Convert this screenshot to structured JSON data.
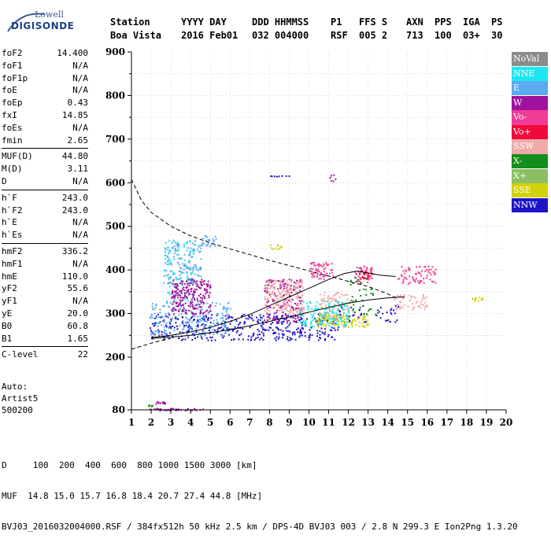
{
  "logo": {
    "top_text": "Lowell",
    "main_text": "DIGISONDE"
  },
  "header": {
    "labels": [
      "Station",
      "YYYY DAY",
      "DDD HHMMSS",
      "P1",
      "FFS S",
      "AXN",
      "PPS",
      "IGA",
      "PS"
    ],
    "values": [
      "Boa Vista",
      "2016 Feb01",
      "032 004000",
      "RSF",
      "005 2",
      "713",
      "100",
      "03+",
      "30"
    ]
  },
  "params": {
    "group1": [
      {
        "label": "foF2",
        "value": "14.400"
      },
      {
        "label": "foF1",
        "value": "N/A"
      },
      {
        "label": "foF1p",
        "value": "N/A"
      },
      {
        "label": "foE",
        "value": "N/A"
      },
      {
        "label": "foEp",
        "value": "0.43"
      },
      {
        "label": "fxI",
        "value": "14.85"
      },
      {
        "label": "foEs",
        "value": "N/A"
      },
      {
        "label": "fmin",
        "value": "2.65"
      }
    ],
    "group2": [
      {
        "label": "MUF(D)",
        "value": "44.80"
      },
      {
        "label": "M(D)",
        "value": "3.11"
      },
      {
        "label": "D",
        "value": "N/A"
      }
    ],
    "group3": [
      {
        "label": "h`F",
        "value": "243.0"
      },
      {
        "label": "h`F2",
        "value": "243.0"
      },
      {
        "label": "h`E",
        "value": "N/A"
      },
      {
        "label": "h`Es",
        "value": "N/A"
      }
    ],
    "group4": [
      {
        "label": "hmF2",
        "value": "336.2"
      },
      {
        "label": "hmF1",
        "value": "N/A"
      },
      {
        "label": "hmE",
        "value": "110.0"
      },
      {
        "label": "yF2",
        "value": "55.6"
      },
      {
        "label": "yF1",
        "value": "N/A"
      },
      {
        "label": "yE",
        "value": "20.0"
      },
      {
        "label": "B0",
        "value": "60.8"
      },
      {
        "label": "B1",
        "value": "1.65"
      }
    ],
    "group5": [
      {
        "label": "C-level",
        "value": "22"
      }
    ]
  },
  "auto": {
    "line1": "Auto:",
    "line2": "Artist5",
    "line3": "500200"
  },
  "legend": [
    {
      "label": "NoVal",
      "color": "#8c8c8c"
    },
    {
      "label": "NNE",
      "color": "#1ee6f0"
    },
    {
      "label": "E",
      "color": "#5aaaf0"
    },
    {
      "label": "W",
      "color": "#a0129c"
    },
    {
      "label": "Vo-",
      "color": "#f03c96"
    },
    {
      "label": "Vo+",
      "color": "#f00a3c"
    },
    {
      "label": "SSW",
      "color": "#f0aaaa"
    },
    {
      "label": "X-",
      "color": "#148c1e"
    },
    {
      "label": "X+",
      "color": "#8cbe64"
    },
    {
      "label": "SSE",
      "color": "#d2d20a"
    },
    {
      "label": "NNW",
      "color": "#1e14c8"
    }
  ],
  "footer": {
    "line1": "D     100  200  400  600  800 1000 1500 3000 [km]",
    "line2": "MUF  14.8 15.0 15.7 16.8 18.4 20.7 27.4 44.8 [MHz]",
    "line3": "BVJ03_2016032004000.RSF / 384fx512h 50 kHz 2.5 km / DPS-4D BVJ03 003 / 2.8 N 299.3 E Ion2Png 1.3.20"
  },
  "chart_data": {
    "type": "scatter",
    "xlim": [
      1,
      20
    ],
    "ylim": [
      80,
      900
    ],
    "x_ticks": [
      1,
      2,
      3,
      4,
      5,
      6,
      7,
      8,
      9,
      10,
      11,
      12,
      13,
      14,
      15,
      16,
      17,
      18,
      19,
      20
    ],
    "y_ticks": [
      80,
      200,
      300,
      400,
      500,
      600,
      700,
      800,
      900
    ],
    "grid": true,
    "legend_position": "right",
    "traces": [
      {
        "name": "o-trace",
        "x": [
          2.0,
          3.0,
          4.0,
          5.0,
          6.0,
          7.0,
          8.0,
          9.0,
          10.0,
          11.0,
          11.8,
          12.4,
          13.0,
          13.6,
          14.4
        ],
        "y": [
          245,
          250,
          258,
          268,
          282,
          298,
          318,
          338,
          358,
          378,
          392,
          397,
          393,
          388,
          385
        ]
      },
      {
        "name": "x-trace",
        "x": [
          2.0,
          3.0,
          4.0,
          5.0,
          6.0,
          7.0,
          8.0,
          9.0,
          10.0,
          11.0,
          12.0,
          13.0,
          14.0,
          14.85
        ],
        "y": [
          243,
          246,
          250,
          256,
          263,
          272,
          282,
          292,
          303,
          314,
          324,
          331,
          336,
          338
        ]
      }
    ],
    "profile": {
      "name": "density-profile",
      "x": [
        1.0,
        1.5,
        2.0,
        3.0,
        4.0,
        5.0,
        6.0,
        7.0,
        8.0,
        9.0,
        10.0,
        11.0,
        12.0,
        13.0,
        14.0,
        14.4
      ],
      "y": [
        608,
        560,
        532,
        500,
        478,
        462,
        448,
        435,
        422,
        410,
        398,
        386,
        374,
        362,
        345,
        336
      ]
    },
    "profile_low": {
      "x": [
        1.0,
        1.5,
        2.0,
        2.5,
        3.0
      ],
      "y": [
        218,
        225,
        232,
        238,
        243
      ]
    },
    "echo_regions": [
      {
        "color": "#1e14c8",
        "x": [
          1.9,
          11.5
        ],
        "y": [
          240,
          300
        ],
        "density": 420
      },
      {
        "color": "#5aaaf0",
        "x": [
          1.9,
          6.0
        ],
        "y": [
          250,
          330
        ],
        "density": 200
      },
      {
        "color": "#5aaaf0",
        "x": [
          2.6,
          4.5
        ],
        "y": [
          370,
          470
        ],
        "density": 150
      },
      {
        "color": "#1ee6f0",
        "x": [
          2.6,
          4.2
        ],
        "y": [
          330,
          470
        ],
        "density": 80
      },
      {
        "color": "#a0129c",
        "x": [
          3.0,
          5.0
        ],
        "y": [
          300,
          380
        ],
        "density": 220
      },
      {
        "color": "#a0129c",
        "x": [
          7.7,
          9.6
        ],
        "y": [
          280,
          380
        ],
        "density": 160
      },
      {
        "color": "#f0aaaa",
        "x": [
          7.7,
          9.7
        ],
        "y": [
          300,
          380
        ],
        "density": 200
      },
      {
        "color": "#f0aaaa",
        "x": [
          10.5,
          12.0
        ],
        "y": [
          290,
          350
        ],
        "density": 80
      },
      {
        "color": "#f0aaaa",
        "x": [
          14.3,
          16.0
        ],
        "y": [
          310,
          345
        ],
        "density": 60
      },
      {
        "color": "#f03c96",
        "x": [
          10.0,
          11.2
        ],
        "y": [
          380,
          420
        ],
        "density": 60
      },
      {
        "color": "#f03c96",
        "x": [
          12.3,
          13.2
        ],
        "y": [
          370,
          410
        ],
        "density": 40
      },
      {
        "color": "#f03c96",
        "x": [
          14.5,
          16.4
        ],
        "y": [
          370,
          410
        ],
        "density": 70
      },
      {
        "color": "#f00a3c",
        "x": [
          12.5,
          13.2
        ],
        "y": [
          380,
          400
        ],
        "density": 25
      },
      {
        "color": "#d2d20a",
        "x": [
          10.3,
          13.0
        ],
        "y": [
          270,
          300
        ],
        "density": 110
      },
      {
        "color": "#d2d20a",
        "x": [
          18.2,
          18.8
        ],
        "y": [
          330,
          340
        ],
        "density": 12
      },
      {
        "color": "#148c1e",
        "x": [
          12.0,
          13.5
        ],
        "y": [
          290,
          390
        ],
        "density": 40
      },
      {
        "color": "#8cbe64",
        "x": [
          10.5,
          12.0
        ],
        "y": [
          280,
          330
        ],
        "density": 40
      },
      {
        "color": "#1ee6f0",
        "x": [
          9.5,
          12.0
        ],
        "y": [
          270,
          330
        ],
        "density": 120
      },
      {
        "color": "#1e14c8",
        "x": [
          11.5,
          14.5
        ],
        "y": [
          280,
          320
        ],
        "density": 40
      },
      {
        "color": "#a0129c",
        "x": [
          1.9,
          4.6
        ],
        "y": [
          80,
          85
        ],
        "density": 40
      },
      {
        "color": "#a0129c",
        "x": [
          2.2,
          2.7
        ],
        "y": [
          95,
          100
        ],
        "density": 12
      },
      {
        "color": "#148c1e",
        "x": [
          1.8,
          2.1
        ],
        "y": [
          90,
          92
        ],
        "density": 8
      },
      {
        "color": "#1e14c8",
        "x": [
          8.0,
          9.0
        ],
        "y": [
          615,
          618
        ],
        "density": 8
      },
      {
        "color": "#a0129c",
        "x": [
          11.0,
          11.5
        ],
        "y": [
          600,
          622
        ],
        "density": 6
      },
      {
        "color": "#d2d20a",
        "x": [
          8.0,
          8.7
        ],
        "y": [
          445,
          460
        ],
        "density": 10
      },
      {
        "color": "#5aaaf0",
        "x": [
          4.5,
          5.3
        ],
        "y": [
          455,
          480
        ],
        "density": 25
      }
    ]
  }
}
